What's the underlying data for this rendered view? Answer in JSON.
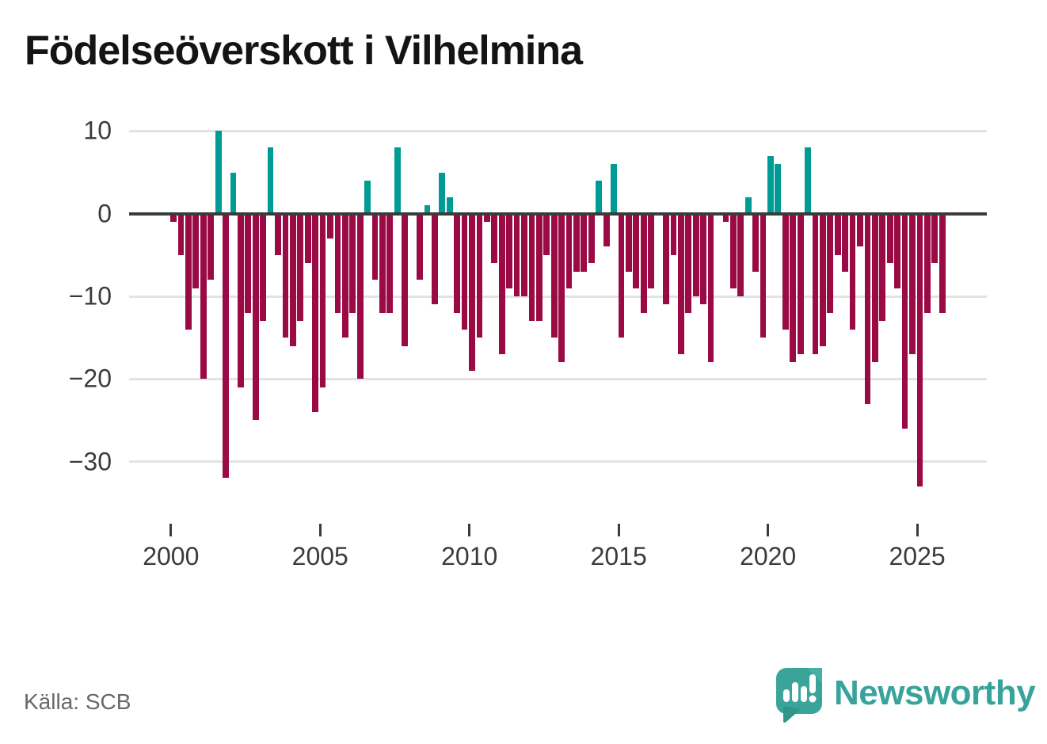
{
  "title": "Födelseöverskott i Vilhelmina",
  "source": "Källa: SCB",
  "logo_text": "Newsworthy",
  "colors": {
    "positive_bar": "#009b94",
    "negative_bar": "#9a0a45",
    "grid": "#e3e3e3",
    "zero_line": "#3b3b3b",
    "axis_text": "#3b3b3b",
    "title_text": "#141414",
    "source_text": "#67676f",
    "logo_teal": "#38a39b"
  },
  "chart_data": {
    "type": "bar",
    "title": "Födelseöverskott i Vilhelmina",
    "frequency": "quarterly",
    "start": {
      "year": 2000,
      "quarter": 1
    },
    "end": {
      "year": 2025,
      "quarter": 4
    },
    "values": [
      -1,
      -5,
      -14,
      -9,
      -20,
      -8,
      10,
      -32,
      5,
      -21,
      -12,
      -25,
      -13,
      8,
      -5,
      -15,
      -16,
      -13,
      -6,
      -24,
      -21,
      -3,
      -12,
      -15,
      -12,
      -20,
      4,
      -8,
      -12,
      -12,
      8,
      -16,
      0,
      -8,
      1,
      -11,
      5,
      2,
      -12,
      -14,
      -19,
      -15,
      -1,
      -6,
      -17,
      -9,
      -10,
      -10,
      -13,
      -13,
      -5,
      -15,
      -18,
      -9,
      -7,
      -7,
      -6,
      4,
      -4,
      6,
      -15,
      -7,
      -9,
      -12,
      -9,
      0,
      -11,
      -5,
      -17,
      -12,
      -10,
      -11,
      -18,
      0,
      -1,
      -9,
      -10,
      2,
      -7,
      -15,
      7,
      6,
      -14,
      -18,
      -17,
      8,
      -17,
      -16,
      -12,
      -5,
      -7,
      -14,
      -4,
      -23,
      -18,
      -13,
      -6,
      -9,
      -26,
      -17,
      -33,
      -12,
      -6,
      -12
    ],
    "x_ticks": [
      2000,
      2005,
      2010,
      2015,
      2020,
      2025
    ],
    "x_tick_labels": [
      "2000",
      "2005",
      "2010",
      "2015",
      "2020",
      "2025"
    ],
    "y_ticks": [
      10,
      0,
      -10,
      -20,
      -30
    ],
    "y_tick_labels": [
      "10",
      "0",
      "−10",
      "−20",
      "−30"
    ],
    "ylim": [
      -35,
      12
    ],
    "grid": true,
    "legend": false,
    "bar_color_rule": "teal for positive values, dark red for negative values"
  }
}
